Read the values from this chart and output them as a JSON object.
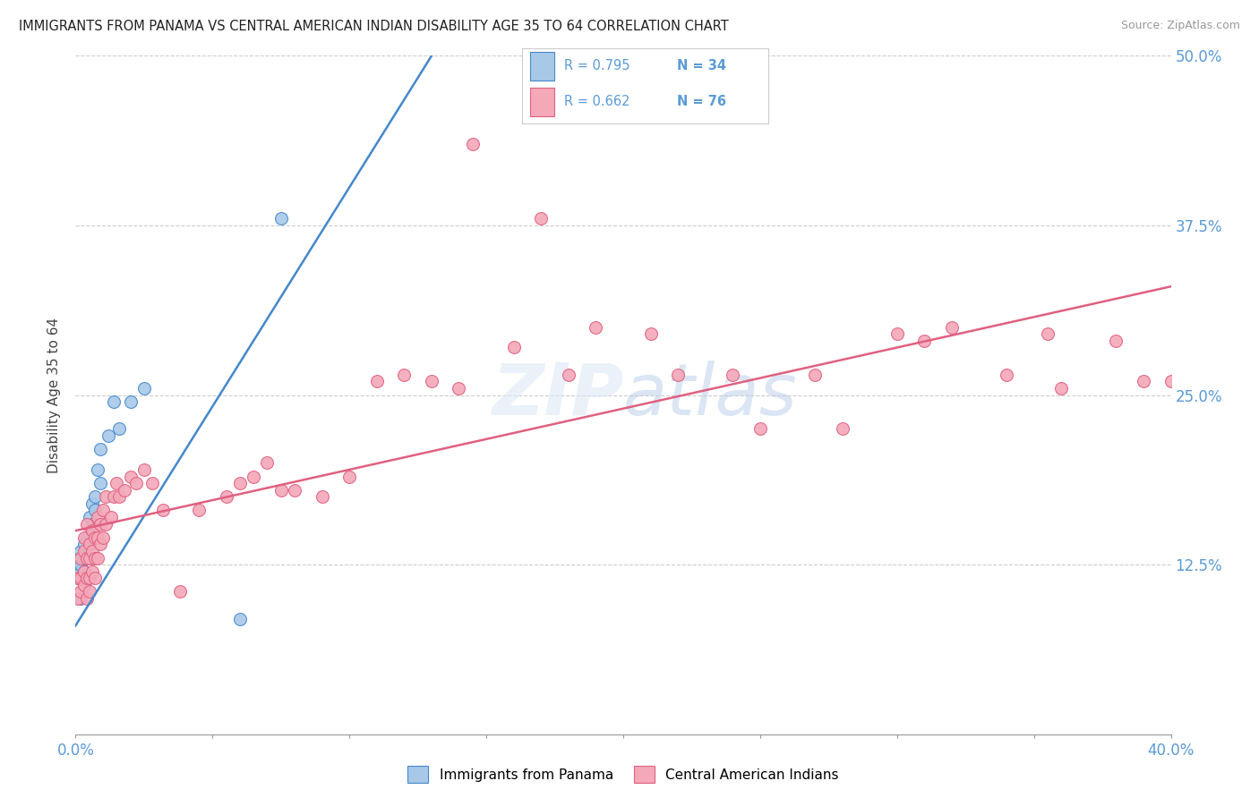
{
  "title": "IMMIGRANTS FROM PANAMA VS CENTRAL AMERICAN INDIAN DISABILITY AGE 35 TO 64 CORRELATION CHART",
  "source": "Source: ZipAtlas.com",
  "ylabel": "Disability Age 35 to 64",
  "xlim": [
    0.0,
    0.4
  ],
  "ylim": [
    0.0,
    0.5
  ],
  "xticks": [
    0.0,
    0.05,
    0.1,
    0.15,
    0.2,
    0.25,
    0.3,
    0.35,
    0.4
  ],
  "xticklabels": [
    "0.0%",
    "",
    "",
    "",
    "",
    "",
    "",
    "",
    "40.0%"
  ],
  "yticks": [
    0.0,
    0.125,
    0.25,
    0.375,
    0.5
  ],
  "yticklabels": [
    "",
    "12.5%",
    "25.0%",
    "37.5%",
    "50.0%"
  ],
  "color_blue": "#a8c8e8",
  "color_pink": "#f4a8b8",
  "trend_color_blue": "#4488cc",
  "trend_color_pink": "#e06080",
  "label1": "Immigrants from Panama",
  "label2": "Central American Indians",
  "watermark": "ZIPatlas",
  "blue_x": [
    0.001,
    0.001,
    0.001,
    0.001,
    0.002,
    0.002,
    0.002,
    0.002,
    0.002,
    0.003,
    0.003,
    0.003,
    0.003,
    0.003,
    0.004,
    0.004,
    0.004,
    0.005,
    0.005,
    0.005,
    0.006,
    0.006,
    0.007,
    0.007,
    0.008,
    0.009,
    0.009,
    0.012,
    0.014,
    0.016,
    0.02,
    0.025,
    0.06,
    0.075
  ],
  "blue_y": [
    0.115,
    0.12,
    0.125,
    0.13,
    0.1,
    0.115,
    0.12,
    0.125,
    0.135,
    0.11,
    0.115,
    0.12,
    0.13,
    0.14,
    0.115,
    0.13,
    0.145,
    0.13,
    0.14,
    0.16,
    0.155,
    0.17,
    0.165,
    0.175,
    0.195,
    0.185,
    0.21,
    0.22,
    0.245,
    0.225,
    0.245,
    0.255,
    0.085,
    0.38
  ],
  "pink_x": [
    0.001,
    0.001,
    0.002,
    0.002,
    0.002,
    0.003,
    0.003,
    0.003,
    0.003,
    0.004,
    0.004,
    0.004,
    0.004,
    0.005,
    0.005,
    0.005,
    0.005,
    0.006,
    0.006,
    0.006,
    0.007,
    0.007,
    0.007,
    0.008,
    0.008,
    0.008,
    0.009,
    0.009,
    0.01,
    0.01,
    0.011,
    0.011,
    0.013,
    0.014,
    0.015,
    0.016,
    0.018,
    0.02,
    0.022,
    0.025,
    0.028,
    0.032,
    0.038,
    0.045,
    0.055,
    0.06,
    0.065,
    0.07,
    0.075,
    0.08,
    0.09,
    0.1,
    0.12,
    0.14,
    0.16,
    0.18,
    0.21,
    0.24,
    0.27,
    0.3,
    0.32,
    0.34,
    0.36,
    0.38,
    0.39,
    0.4,
    0.355,
    0.31,
    0.28,
    0.25,
    0.22,
    0.19,
    0.17,
    0.145,
    0.13,
    0.11
  ],
  "pink_y": [
    0.1,
    0.115,
    0.105,
    0.115,
    0.13,
    0.11,
    0.12,
    0.135,
    0.145,
    0.1,
    0.115,
    0.13,
    0.155,
    0.105,
    0.115,
    0.13,
    0.14,
    0.12,
    0.135,
    0.15,
    0.115,
    0.13,
    0.145,
    0.13,
    0.145,
    0.16,
    0.14,
    0.155,
    0.145,
    0.165,
    0.155,
    0.175,
    0.16,
    0.175,
    0.185,
    0.175,
    0.18,
    0.19,
    0.185,
    0.195,
    0.185,
    0.165,
    0.105,
    0.165,
    0.175,
    0.185,
    0.19,
    0.2,
    0.18,
    0.18,
    0.175,
    0.19,
    0.265,
    0.255,
    0.285,
    0.265,
    0.295,
    0.265,
    0.265,
    0.295,
    0.3,
    0.265,
    0.255,
    0.29,
    0.26,
    0.26,
    0.295,
    0.29,
    0.225,
    0.225,
    0.265,
    0.3,
    0.38,
    0.435,
    0.26,
    0.26
  ]
}
